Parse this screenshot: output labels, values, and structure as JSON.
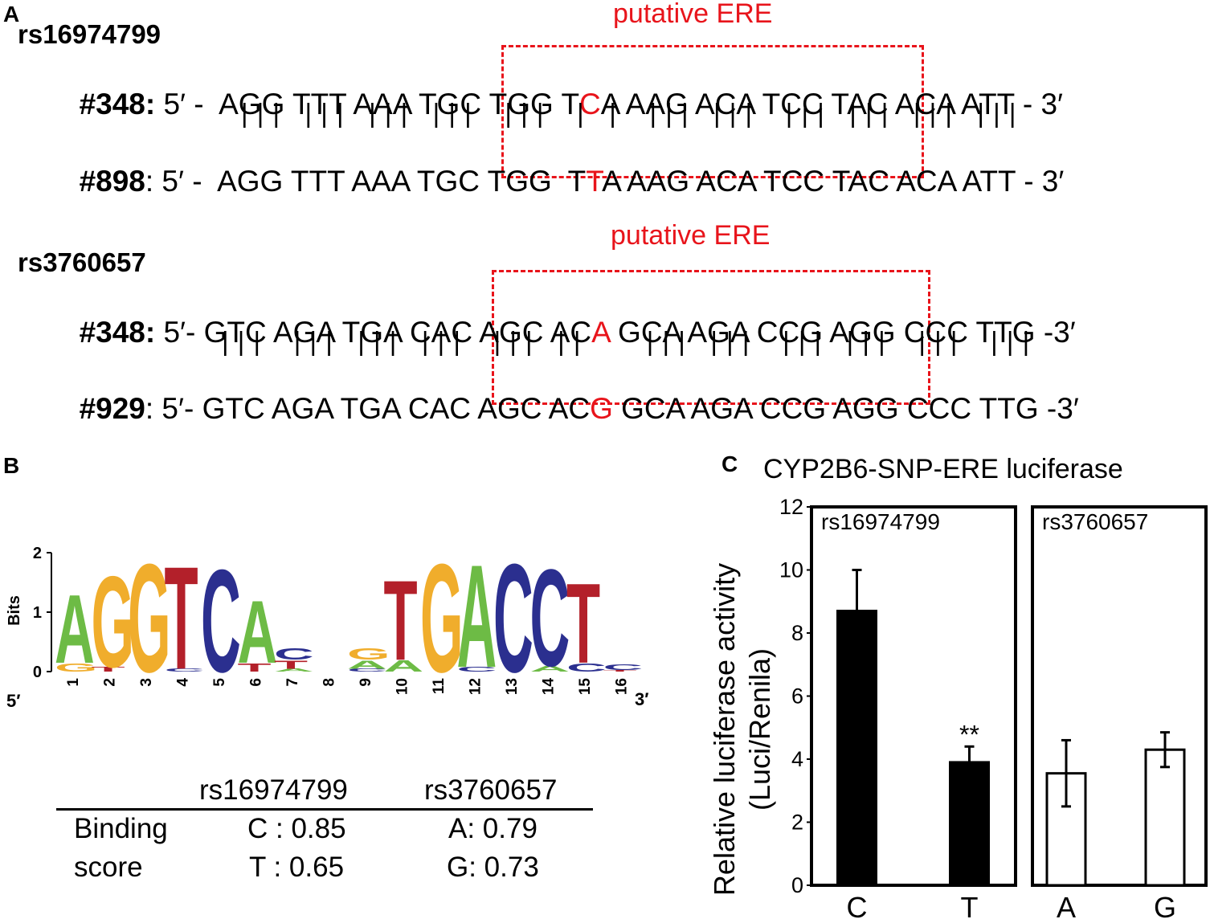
{
  "panelA": {
    "letter": "A",
    "blocks": [
      {
        "snp": "rs16974799",
        "ere_label": "putative ERE",
        "rows": [
          {
            "id": "#348:",
            "prefix": " 5′ -  ",
            "pre": "AGG TTT AAA TGC TGG T",
            "var": "C",
            "post": "A AAG ACA TCC TAC ACA ATT - 3′"
          },
          {
            "id": "#898",
            "sep": ":",
            "prefix": " 5′ -  ",
            "pre": "AGG TTT AAA TGC TGG  T",
            "var": "T",
            "post": "A AAG ACA TCC TAC ACA ATT - 3′"
          }
        ],
        "match_lines": "| | |   | | |   | | |   | | |    | | |    |   |    | | |   | | |    | | |   | | |   | | |   | | |"
      },
      {
        "snp": "rs3760657",
        "ere_label": "putative ERE",
        "rows": [
          {
            "id": "#348:",
            "prefix": " 5′- ",
            "pre": "GTC AGA TGA CAC AGC AC",
            "var": "A",
            "post": " GCA AGA CCG AGG CCC TTG -3′"
          },
          {
            "id": "#929",
            "sep": ":",
            "prefix": " 5′- ",
            "pre": "GTC AGA TGA CAC AGC AC",
            "var": "G",
            "post": " GCA AGA CCG AGG CCC TTG -3′"
          }
        ],
        "match_lines": "| | |    | | |   | | |   | | |    | | |   | |        | | |   | | |    | | |   | | |    | | |    | | |"
      }
    ]
  },
  "panelB": {
    "letter": "B",
    "logo": {
      "ylabel": "Bits",
      "yticks": [
        "0",
        "1",
        "2"
      ],
      "five_prime": "5′",
      "three_prime": "3′",
      "positions": [
        "1",
        "2",
        "3",
        "4",
        "5",
        "6",
        "7",
        "8",
        "9",
        "10",
        "11",
        "12",
        "13",
        "14",
        "15",
        "16"
      ],
      "columns": [
        [
          {
            "l": "A",
            "h": 1.2
          },
          {
            "l": "G",
            "h": 0.15
          }
        ],
        [
          {
            "l": "G",
            "h": 1.6
          },
          {
            "l": "T",
            "h": 0.08
          }
        ],
        [
          {
            "l": "G",
            "h": 1.9
          }
        ],
        [
          {
            "l": "T",
            "h": 1.8
          },
          {
            "l": "C",
            "h": 0.05
          }
        ],
        [
          {
            "l": "C",
            "h": 1.8
          }
        ],
        [
          {
            "l": "A",
            "h": 1.1
          },
          {
            "l": "T",
            "h": 0.15
          }
        ],
        [
          {
            "l": "C",
            "h": 0.2
          },
          {
            "l": "T",
            "h": 0.15
          },
          {
            "l": "A",
            "h": 0.05
          }
        ],
        [],
        [
          {
            "l": "G",
            "h": 0.2
          },
          {
            "l": "A",
            "h": 0.15
          },
          {
            "l": "C",
            "h": 0.05
          }
        ],
        [
          {
            "l": "T",
            "h": 1.4
          },
          {
            "l": "A",
            "h": 0.2
          }
        ],
        [
          {
            "l": "G",
            "h": 1.9
          }
        ],
        [
          {
            "l": "A",
            "h": 1.8
          },
          {
            "l": "C",
            "h": 0.08
          }
        ],
        [
          {
            "l": "C",
            "h": 1.9
          }
        ],
        [
          {
            "l": "C",
            "h": 1.7
          },
          {
            "l": "A",
            "h": 0.1
          }
        ],
        [
          {
            "l": "T",
            "h": 1.4
          },
          {
            "l": "C",
            "h": 0.15
          }
        ],
        [
          {
            "l": "C",
            "h": 0.1
          },
          {
            "l": "T",
            "h": 0.03
          }
        ]
      ],
      "colors": {
        "A": "#6dbb45",
        "C": "#2b2f8f",
        "G": "#f0ad2c",
        "T": "#b3202a"
      }
    },
    "table": {
      "col1": "rs16974799",
      "col2": "rs3760657",
      "row_label_1": "Binding",
      "row_label_2": "score",
      "r1c1": "C : 0.85",
      "r1c2": "A: 0.79",
      "r2c1": "T : 0.65",
      "r2c2": "G: 0.73"
    }
  },
  "panelC": {
    "letter": "C"
  },
  "chart_data": {
    "type": "bar",
    "title": "CYP2B6-SNP-ERE luciferase",
    "ylabel_line1": "Relative luciferase activity",
    "ylabel_line2": "(Luci/Renila)",
    "ylim": [
      0,
      12
    ],
    "yticks": [
      "0",
      "2",
      "4",
      "6",
      "8",
      "10",
      "12"
    ],
    "subplots": [
      {
        "name": "rs16974799",
        "categories": [
          "C",
          "T"
        ],
        "values": [
          8.7,
          3.9
        ],
        "errors": [
          1.3,
          0.5
        ],
        "fill": "#000000",
        "annotations": [
          "",
          "**"
        ]
      },
      {
        "name": "rs3760657",
        "categories": [
          "A",
          "G"
        ],
        "values": [
          3.55,
          4.3
        ],
        "errors": [
          1.05,
          0.55
        ],
        "fill": "#ffffff",
        "annotations": [
          "",
          ""
        ]
      }
    ]
  }
}
